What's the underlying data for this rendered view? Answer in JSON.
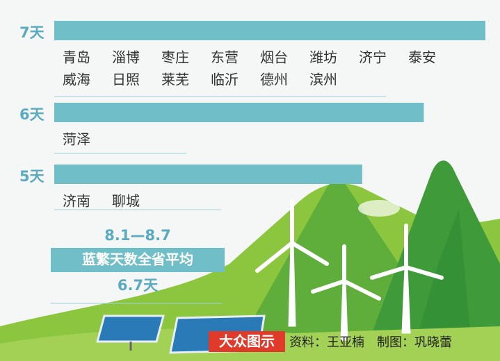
{
  "chart_data": {
    "type": "bar",
    "orientation": "horizontal",
    "values": [
      7,
      6,
      5
    ],
    "value_labels": [
      "7天",
      "6天",
      "5天"
    ],
    "groups": [
      [
        "青岛",
        "淄博",
        "枣庄",
        "东营",
        "烟台",
        "潍坊",
        "济宁",
        "泰安",
        "威海",
        "日照",
        "莱芜",
        "临沂",
        "德州",
        "滨州"
      ],
      [
        "菏泽"
      ],
      [
        "济南",
        "聊城"
      ]
    ],
    "color": "#70bec8",
    "xlim": [
      0,
      7
    ],
    "date_range": "8.1—8.7",
    "average_title": "蓝繁天数全省平均",
    "average": {
      "value": 6.7,
      "label": "6.7天"
    },
    "source": "资料：王亚楠　制图：巩晓蕾",
    "logo": "大众图示"
  }
}
